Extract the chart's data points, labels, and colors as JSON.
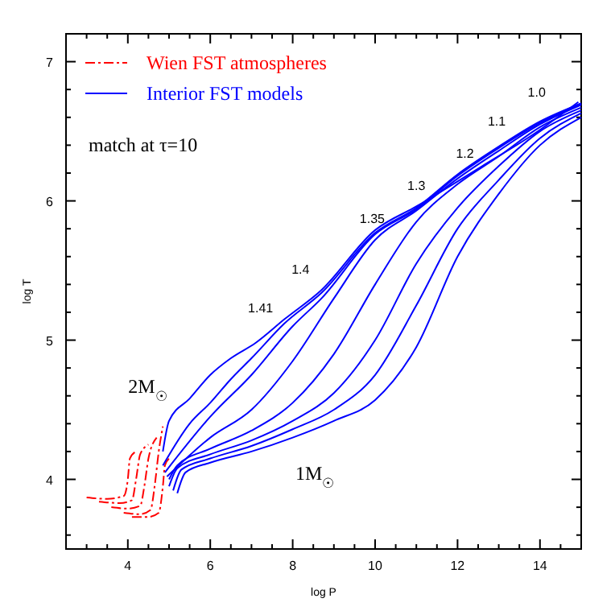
{
  "chart_data": {
    "type": "line",
    "xlabel": "log P",
    "ylabel": "log T",
    "xlim": [
      2.5,
      15
    ],
    "ylim": [
      3.5,
      7.2
    ],
    "xticks": [
      {
        "value": 3,
        "label": null
      },
      {
        "value": 3.5,
        "label": null
      },
      4,
      {
        "value": 4.5,
        "label": null
      },
      {
        "value": 5,
        "label": null
      },
      {
        "value": 5.5,
        "label": null
      },
      6,
      {
        "value": 6.5,
        "label": null
      },
      {
        "value": 7,
        "label": null
      },
      {
        "value": 7.5,
        "label": null
      },
      8,
      {
        "value": 8.5,
        "label": null
      },
      {
        "value": 9,
        "label": null
      },
      {
        "value": 9.5,
        "label": null
      },
      10,
      {
        "value": 10.5,
        "label": null
      },
      {
        "value": 11,
        "label": null
      },
      {
        "value": 11.5,
        "label": null
      },
      12,
      {
        "value": 12.5,
        "label": null
      },
      {
        "value": 13,
        "label": null
      },
      {
        "value": 13.5,
        "label": null
      },
      14,
      {
        "value": 14.5,
        "label": null
      }
    ],
    "yticks": [
      {
        "value": 3.6,
        "label": null
      },
      {
        "value": 3.8,
        "label": null
      },
      4,
      {
        "value": 4.2,
        "label": null
      },
      {
        "value": 4.4,
        "label": null
      },
      {
        "value": 4.6,
        "label": null
      },
      {
        "value": 4.8,
        "label": null
      },
      5,
      {
        "value": 5.2,
        "label": null
      },
      {
        "value": 5.4,
        "label": null
      },
      {
        "value": 5.6,
        "label": null
      },
      {
        "value": 5.8,
        "label": null
      },
      6,
      {
        "value": 6.2,
        "label": null
      },
      {
        "value": 6.4,
        "label": null
      },
      {
        "value": 6.6,
        "label": null
      },
      {
        "value": 6.8,
        "label": null
      },
      7
    ],
    "legend": "top left",
    "grid": false,
    "series": [
      {
        "name": "Wien FST atmospheres",
        "color": "#ff0000",
        "line_style": "dashed",
        "x": [
          3.0,
          3.5,
          3.9,
          4.0,
          4.05,
          4.2
        ],
        "values": [
          3.87,
          3.86,
          3.88,
          4.0,
          4.15,
          4.2
        ]
      },
      {
        "color": "#ff0000",
        "line_style": "dashed",
        "x": [
          3.3,
          3.8,
          4.1,
          4.2,
          4.3,
          4.5
        ],
        "values": [
          3.84,
          3.83,
          3.85,
          4.0,
          4.18,
          4.25
        ]
      },
      {
        "color": "#ff0000",
        "line_style": "dashed",
        "x": [
          3.6,
          4.0,
          4.3,
          4.4,
          4.5,
          4.7
        ],
        "values": [
          3.8,
          3.79,
          3.81,
          3.95,
          4.15,
          4.3
        ]
      },
      {
        "color": "#ff0000",
        "line_style": "dashed",
        "x": [
          3.9,
          4.3,
          4.55,
          4.65,
          4.75,
          4.85
        ],
        "values": [
          3.76,
          3.75,
          3.78,
          3.95,
          4.2,
          4.38
        ]
      },
      {
        "color": "#ff0000",
        "line_style": "dashed",
        "x": [
          4.1,
          4.5,
          4.75,
          4.85,
          4.9,
          5.0
        ],
        "values": [
          3.73,
          3.73,
          3.76,
          3.95,
          4.1,
          4.15
        ]
      },
      {
        "name": "Interior FST models",
        "color": "#0000ff",
        "line_style": "solid",
        "x": [
          5.2,
          5.4,
          6,
          7,
          8,
          9,
          10,
          11,
          12,
          13,
          14,
          15
        ],
        "values": [
          3.9,
          4.05,
          4.12,
          4.2,
          4.3,
          4.42,
          4.57,
          4.95,
          5.6,
          6.05,
          6.4,
          6.6
        ]
      },
      {
        "color": "#0000ff",
        "line_style": "solid",
        "x": [
          5.1,
          5.3,
          6,
          7,
          8,
          9,
          10,
          11,
          12,
          13,
          14,
          15
        ],
        "values": [
          3.92,
          4.07,
          4.15,
          4.24,
          4.36,
          4.5,
          4.75,
          5.25,
          5.8,
          6.15,
          6.45,
          6.63
        ]
      },
      {
        "color": "#0000ff",
        "line_style": "solid",
        "x": [
          5.0,
          5.2,
          6,
          7,
          8,
          9,
          10,
          11,
          12,
          13,
          14,
          15
        ],
        "values": [
          3.95,
          4.08,
          4.18,
          4.28,
          4.42,
          4.62,
          5.0,
          5.55,
          5.95,
          6.25,
          6.5,
          6.65
        ]
      },
      {
        "color": "#0000ff",
        "line_style": "solid",
        "x": [
          5.0,
          5.2,
          6,
          7,
          8,
          9,
          10,
          11,
          12,
          13,
          14,
          15
        ],
        "values": [
          4.0,
          4.1,
          4.22,
          4.35,
          4.55,
          4.9,
          5.4,
          5.85,
          6.12,
          6.32,
          6.53,
          6.67
        ]
      },
      {
        "color": "#0000ff",
        "line_style": "solid",
        "x": [
          4.95,
          6,
          7,
          8,
          9,
          10,
          11,
          12,
          13,
          14,
          15
        ],
        "values": [
          4.02,
          4.3,
          4.5,
          4.85,
          5.3,
          5.72,
          5.93,
          6.16,
          6.36,
          6.55,
          6.69
        ]
      },
      {
        "color": "#0000ff",
        "line_style": "solid",
        "x": [
          4.9,
          6,
          7,
          8,
          8.7,
          10,
          11,
          12,
          13,
          14,
          15
        ],
        "values": [
          4.05,
          4.45,
          4.75,
          5.1,
          5.3,
          5.76,
          5.94,
          6.18,
          6.38,
          6.56,
          6.7
        ]
      },
      {
        "color": "#0000ff",
        "line_style": "solid",
        "x": [
          4.85,
          5.5,
          6,
          6.5,
          7,
          7.8,
          8.7,
          10,
          11,
          12,
          13,
          14,
          15
        ],
        "values": [
          4.1,
          4.4,
          4.55,
          4.72,
          4.87,
          5.12,
          5.34,
          5.77,
          5.95,
          6.19,
          6.39,
          6.57,
          6.7
        ]
      },
      {
        "color": "#0000ff",
        "line_style": "solid",
        "x": [
          4.85,
          5,
          5.5,
          6,
          6.5,
          7.1,
          7.8,
          8.7,
          10,
          11,
          12.6,
          13.85,
          14.93
        ],
        "values": [
          4.2,
          4.42,
          4.58,
          4.75,
          4.87,
          4.98,
          5.15,
          5.36,
          5.79,
          5.96,
          6.25,
          6.48,
          6.71
        ]
      }
    ],
    "annotations": [
      "match at τ=10",
      "1.0",
      "1.1",
      "1.2",
      "1.3",
      "1.35",
      "1.4",
      "1.41",
      "2M$_{☉}$",
      "1M$_{☉}$"
    ]
  }
}
